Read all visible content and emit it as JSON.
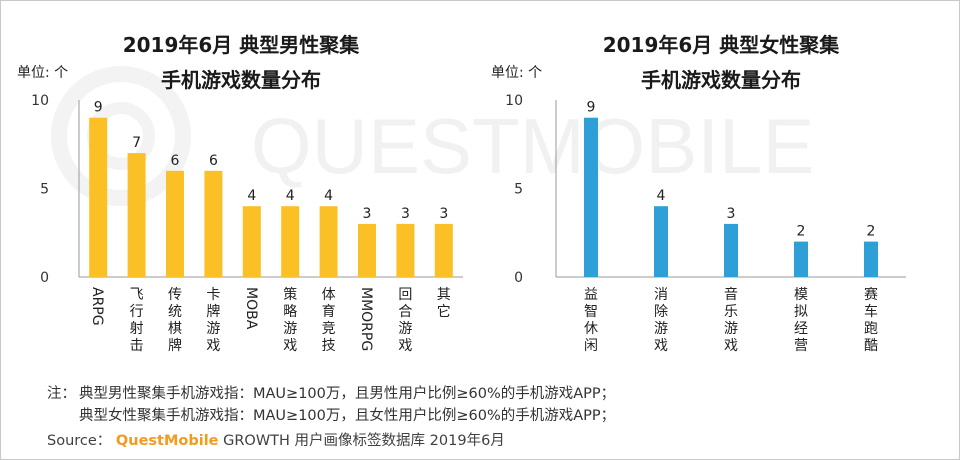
{
  "watermark": "QUESTMOBILE",
  "chart_data": [
    {
      "type": "bar",
      "title": [
        "2019年6月 典型男性聚集",
        "手机游戏数量分布"
      ],
      "unit_label": "单位: 个",
      "categories": [
        "ARPG",
        "飞行射击",
        "传统棋牌",
        "卡牌游戏",
        "MOBA",
        "策略游戏",
        "体育竞技",
        "MMORPG",
        "回合游戏",
        "其它"
      ],
      "values": [
        9,
        7,
        6,
        6,
        4,
        4,
        4,
        3,
        3,
        3
      ],
      "yticks": [
        0,
        5,
        10
      ],
      "ylim": [
        0,
        10
      ],
      "color": "#fcc027"
    },
    {
      "type": "bar",
      "title": [
        "2019年6月 典型女性聚集",
        "手机游戏数量分布"
      ],
      "unit_label": "单位: 个",
      "categories": [
        "益智休闲",
        "消除游戏",
        "音乐游戏",
        "模拟经营",
        "赛车跑酷"
      ],
      "values": [
        9,
        4,
        3,
        2,
        2
      ],
      "yticks": [
        0,
        5,
        10
      ],
      "ylim": [
        0,
        10
      ],
      "color": "#2f9fd8"
    }
  ],
  "notes": {
    "label": "注：",
    "lines": [
      "典型男性聚集手机游戏指：MAU≥100万，且男性用户比例≥60%的手机游戏APP；",
      "典型女性聚集手机游戏指：MAU≥100万，且女性用户比例≥60%的手机游戏APP；"
    ]
  },
  "source": {
    "prefix": "Source：",
    "brand": "QuestMobile",
    "suffix": "GROWTH 用户画像标签数据库 2019年6月"
  }
}
